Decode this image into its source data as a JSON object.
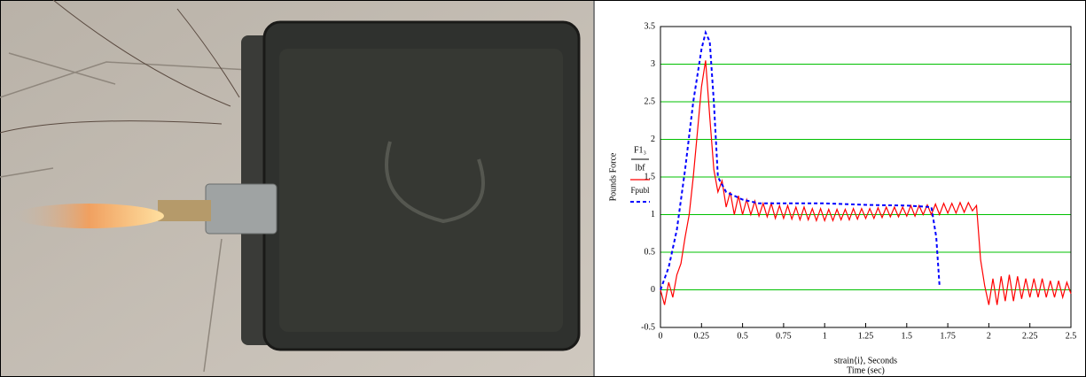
{
  "chart_data": {
    "type": "line",
    "ylabel": "Pounds Force",
    "y_units": "lbf",
    "xlabel": "strain⟨i⟩, Seconds",
    "xlabel2": "Time (sec)",
    "xlim": [
      0,
      2.5
    ],
    "xticks": [
      0,
      0.25,
      0.5,
      0.75,
      1,
      1.25,
      1.5,
      1.75,
      2,
      2.25,
      2.5
    ],
    "ylim": [
      -0.5,
      3.5
    ],
    "yticks": [
      -0.5,
      0,
      0.5,
      1,
      1.5,
      2,
      2.5,
      3,
      3.5
    ],
    "grid": true,
    "grid_color": "#00c000",
    "series": [
      {
        "name": "F1₃",
        "color": "#ff0000",
        "dash": false,
        "x": [
          0,
          0.025,
          0.05,
          0.075,
          0.1,
          0.125,
          0.15,
          0.175,
          0.2,
          0.225,
          0.25,
          0.275,
          0.3,
          0.325,
          0.35,
          0.375,
          0.4,
          0.425,
          0.45,
          0.475,
          0.5,
          0.525,
          0.55,
          0.575,
          0.6,
          0.625,
          0.65,
          0.675,
          0.7,
          0.725,
          0.75,
          0.775,
          0.8,
          0.825,
          0.85,
          0.875,
          0.9,
          0.925,
          0.95,
          0.975,
          1,
          1.025,
          1.05,
          1.075,
          1.1,
          1.125,
          1.15,
          1.175,
          1.2,
          1.225,
          1.25,
          1.275,
          1.3,
          1.325,
          1.35,
          1.375,
          1.4,
          1.425,
          1.45,
          1.475,
          1.5,
          1.525,
          1.55,
          1.575,
          1.6,
          1.625,
          1.65,
          1.675,
          1.7,
          1.725,
          1.75,
          1.775,
          1.8,
          1.825,
          1.85,
          1.875,
          1.9,
          1.925,
          1.95,
          1.975,
          2,
          2.025,
          2.05,
          2.075,
          2.1,
          2.125,
          2.15,
          2.175,
          2.2,
          2.225,
          2.25,
          2.275,
          2.3,
          2.325,
          2.35,
          2.375,
          2.4,
          2.425,
          2.45,
          2.475,
          2.5
        ],
        "values": [
          0,
          -0.2,
          0.1,
          -0.1,
          0.2,
          0.35,
          0.7,
          1.0,
          1.5,
          2.1,
          2.7,
          3.05,
          2.3,
          1.6,
          1.3,
          1.45,
          1.1,
          1.3,
          1.0,
          1.25,
          1.0,
          1.2,
          1.0,
          1.18,
          0.98,
          1.15,
          0.97,
          1.15,
          0.95,
          1.12,
          0.95,
          1.12,
          0.94,
          1.1,
          0.93,
          1.1,
          0.93,
          1.08,
          0.92,
          1.08,
          0.92,
          1.07,
          0.92,
          1.07,
          0.93,
          1.07,
          0.93,
          1.08,
          0.94,
          1.08,
          0.95,
          1.08,
          0.95,
          1.09,
          0.96,
          1.1,
          0.97,
          1.1,
          0.97,
          1.1,
          0.98,
          1.12,
          0.98,
          1.12,
          1.0,
          1.13,
          1.0,
          1.14,
          1.0,
          1.15,
          1.02,
          1.15,
          1.02,
          1.16,
          1.03,
          1.16,
          1.05,
          1.12,
          0.4,
          0.05,
          -0.2,
          0.15,
          -0.2,
          0.18,
          -0.15,
          0.2,
          -0.15,
          0.18,
          -0.12,
          0.15,
          -0.1,
          0.15,
          -0.1,
          0.15,
          -0.1,
          0.12,
          -0.1,
          0.12,
          -0.1,
          0.1,
          -0.05
        ]
      },
      {
        "name": "Fpubl",
        "color": "#0000ff",
        "dash": true,
        "x": [
          0,
          0.05,
          0.1,
          0.15,
          0.2,
          0.25,
          0.275,
          0.3,
          0.325,
          0.35,
          0.4,
          0.5,
          0.6,
          0.75,
          1.0,
          1.25,
          1.5,
          1.65,
          1.68,
          1.7
        ],
        "values": [
          0,
          0.3,
          0.8,
          1.6,
          2.5,
          3.2,
          3.42,
          3.3,
          2.5,
          1.5,
          1.3,
          1.2,
          1.15,
          1.15,
          1.15,
          1.13,
          1.12,
          1.1,
          0.7,
          0.05
        ]
      }
    ]
  }
}
